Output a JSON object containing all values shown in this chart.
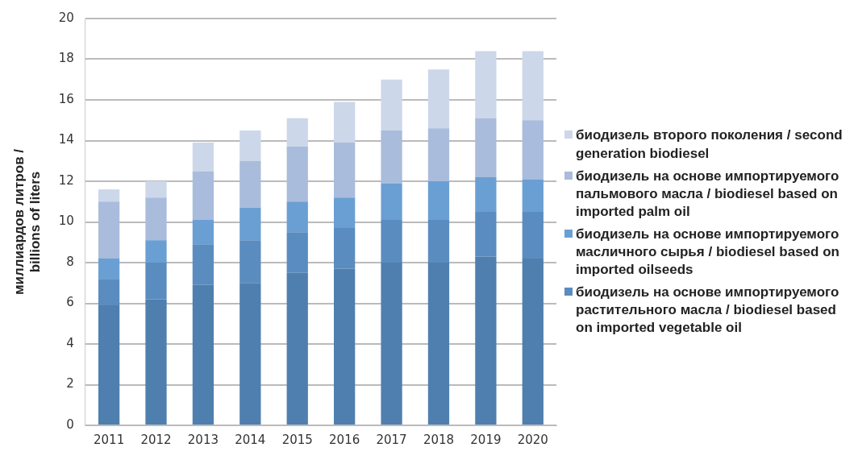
{
  "chart_data": {
    "type": "bar",
    "stacked": true,
    "ylabel": "миллиардов литров /\nbillions of liters",
    "categories": [
      "2011",
      "2012",
      "2013",
      "2014",
      "2015",
      "2016",
      "2017",
      "2018",
      "2019",
      "2020"
    ],
    "series": [
      {
        "color": "#4f7faf",
        "values": [
          5.9,
          6.2,
          6.9,
          7.0,
          7.5,
          7.7,
          8.0,
          8.0,
          8.3,
          8.2
        ]
      },
      {
        "name": "биодизель на основе импортируемого растительного масла / biodiesel based on imported vegetable oil",
        "color": "#5a8cc0",
        "values": [
          1.3,
          1.8,
          2.0,
          2.1,
          2.0,
          2.0,
          2.1,
          2.1,
          2.2,
          2.3
        ]
      },
      {
        "name": "биодизель на основе импортируемого масличного сырья / biodiesel based on imported oilseeds",
        "color": "#6a9fd4",
        "values": [
          1.0,
          1.1,
          1.2,
          1.6,
          1.5,
          1.5,
          1.8,
          1.9,
          1.7,
          1.6
        ]
      },
      {
        "name": "биодизель на основе импортируемого пальмового масла / biodiesel based on imported palm oil",
        "color": "#a9bcdc",
        "values": [
          2.8,
          2.1,
          2.4,
          2.3,
          2.7,
          2.7,
          2.6,
          2.6,
          2.9,
          2.9
        ]
      },
      {
        "name": "биодизель второго поколения / second generation biodiesel",
        "color": "#cdd7ea",
        "values": [
          0.6,
          0.8,
          1.4,
          1.5,
          1.4,
          2.0,
          2.5,
          2.9,
          3.3,
          3.4
        ]
      }
    ],
    "ylim": [
      0,
      20
    ],
    "yticks": [
      0,
      2,
      4,
      6,
      8,
      10,
      12,
      14,
      16,
      18,
      20
    ],
    "grid": "y",
    "legend": "right"
  }
}
